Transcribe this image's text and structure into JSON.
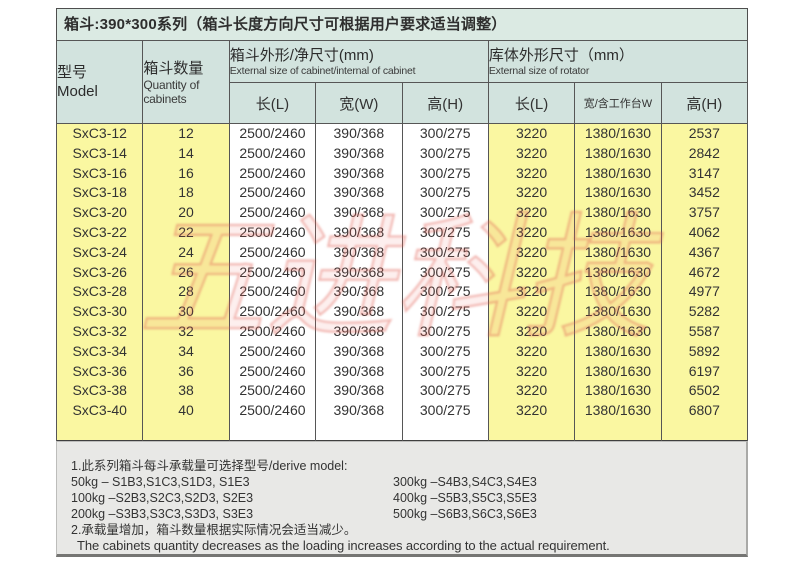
{
  "title": "箱斗:390*300系列（箱斗长度方向尺寸可根据用户要求适当调整）",
  "colors": {
    "title_bg": "#dbeae3",
    "header_bg": "#d2e3de",
    "highlight_yellow": "#faf7a1",
    "notes_bg": "#e8e8e6",
    "border": "#4e4e4e",
    "watermark_red": "#e15c50"
  },
  "table": {
    "headers": {
      "model_zh": "型号",
      "model_en": "Model",
      "qty_zh": "箱斗数量",
      "qty_en": "Quantity of cabinets",
      "cabinet_group_zh": "箱斗外形/净尺寸(mm)",
      "cabinet_group_en": "External size of cabinet/internal of cabinet",
      "rotator_group_zh": "库体外形尺寸（mm）",
      "rotator_group_en": "External size of rotator",
      "sub": [
        "长(L)",
        "宽(W)",
        "高(H)",
        "长(L)",
        "宽/含工作台W",
        "高(H)"
      ]
    },
    "rows": [
      {
        "model": "SxC3-12",
        "qty": "12",
        "cab_l": "2500/2460",
        "cab_w": "390/368",
        "cab_h": "300/275",
        "rot_l": "3220",
        "rot_w": "1380/1630",
        "rot_h": "2537"
      },
      {
        "model": "SxC3-14",
        "qty": "14",
        "cab_l": "2500/2460",
        "cab_w": "390/368",
        "cab_h": "300/275",
        "rot_l": "3220",
        "rot_w": "1380/1630",
        "rot_h": "2842"
      },
      {
        "model": "SxC3-16",
        "qty": "16",
        "cab_l": "2500/2460",
        "cab_w": "390/368",
        "cab_h": "300/275",
        "rot_l": "3220",
        "rot_w": "1380/1630",
        "rot_h": "3147"
      },
      {
        "model": "SxC3-18",
        "qty": "18",
        "cab_l": "2500/2460",
        "cab_w": "390/368",
        "cab_h": "300/275",
        "rot_l": "3220",
        "rot_w": "1380/1630",
        "rot_h": "3452"
      },
      {
        "model": "SxC3-20",
        "qty": "20",
        "cab_l": "2500/2460",
        "cab_w": "390/368",
        "cab_h": "300/275",
        "rot_l": "3220",
        "rot_w": "1380/1630",
        "rot_h": "3757"
      },
      {
        "model": "SxC3-22",
        "qty": "22",
        "cab_l": "2500/2460",
        "cab_w": "390/368",
        "cab_h": "300/275",
        "rot_l": "3220",
        "rot_w": "1380/1630",
        "rot_h": "4062"
      },
      {
        "model": "SxC3-24",
        "qty": "24",
        "cab_l": "2500/2460",
        "cab_w": "390/368",
        "cab_h": "300/275",
        "rot_l": "3220",
        "rot_w": "1380/1630",
        "rot_h": "4367"
      },
      {
        "model": "SxC3-26",
        "qty": "26",
        "cab_l": "2500/2460",
        "cab_w": "390/368",
        "cab_h": "300/275",
        "rot_l": "3220",
        "rot_w": "1380/1630",
        "rot_h": "4672"
      },
      {
        "model": "SxC3-28",
        "qty": "28",
        "cab_l": "2500/2460",
        "cab_w": "390/368",
        "cab_h": "300/275",
        "rot_l": "3220",
        "rot_w": "1380/1630",
        "rot_h": "4977"
      },
      {
        "model": "SxC3-30",
        "qty": "30",
        "cab_l": "2500/2460",
        "cab_w": "390/368",
        "cab_h": "300/275",
        "rot_l": "3220",
        "rot_w": "1380/1630",
        "rot_h": "5282"
      },
      {
        "model": "SxC3-32",
        "qty": "32",
        "cab_l": "2500/2460",
        "cab_w": "390/368",
        "cab_h": "300/275",
        "rot_l": "3220",
        "rot_w": "1380/1630",
        "rot_h": "5587"
      },
      {
        "model": "SxC3-34",
        "qty": "34",
        "cab_l": "2500/2460",
        "cab_w": "390/368",
        "cab_h": "300/275",
        "rot_l": "3220",
        "rot_w": "1380/1630",
        "rot_h": "5892"
      },
      {
        "model": "SxC3-36",
        "qty": "36",
        "cab_l": "2500/2460",
        "cab_w": "390/368",
        "cab_h": "300/275",
        "rot_l": "3220",
        "rot_w": "1380/1630",
        "rot_h": "6197"
      },
      {
        "model": "SxC3-38",
        "qty": "38",
        "cab_l": "2500/2460",
        "cab_w": "390/368",
        "cab_h": "300/275",
        "rot_l": "3220",
        "rot_w": "1380/1630",
        "rot_h": "6502"
      },
      {
        "model": "SxC3-40",
        "qty": "40",
        "cab_l": "2500/2460",
        "cab_w": "390/368",
        "cab_h": "300/275",
        "rot_l": "3220",
        "rot_w": "1380/1630",
        "rot_h": "6807"
      }
    ]
  },
  "notes": {
    "line1": "1.此系列箱斗每斗承载量可选择型号/derive model:",
    "kg_lines": [
      {
        "left": "50kg – S1B3,S1C3,S1D3, S1E3",
        "right": "300kg –S4B3,S4C3,S4E3"
      },
      {
        "left": "100kg –S2B3,S2C3,S2D3, S2E3",
        "right": "400kg –S5B3,S5C3,S5E3"
      },
      {
        "left": "200kg –S3B3,S3C3,S3D3, S3E3",
        "right": "500kg –S6B3,S6C3,S6E3"
      }
    ],
    "line2_zh": "2.承载量增加，箱斗数量根据实际情况会适当减少。",
    "line2_en": "The cabinets quantity decreases as the loading increases according to the actual requirement."
  },
  "watermark": {
    "text": "五进科技"
  }
}
